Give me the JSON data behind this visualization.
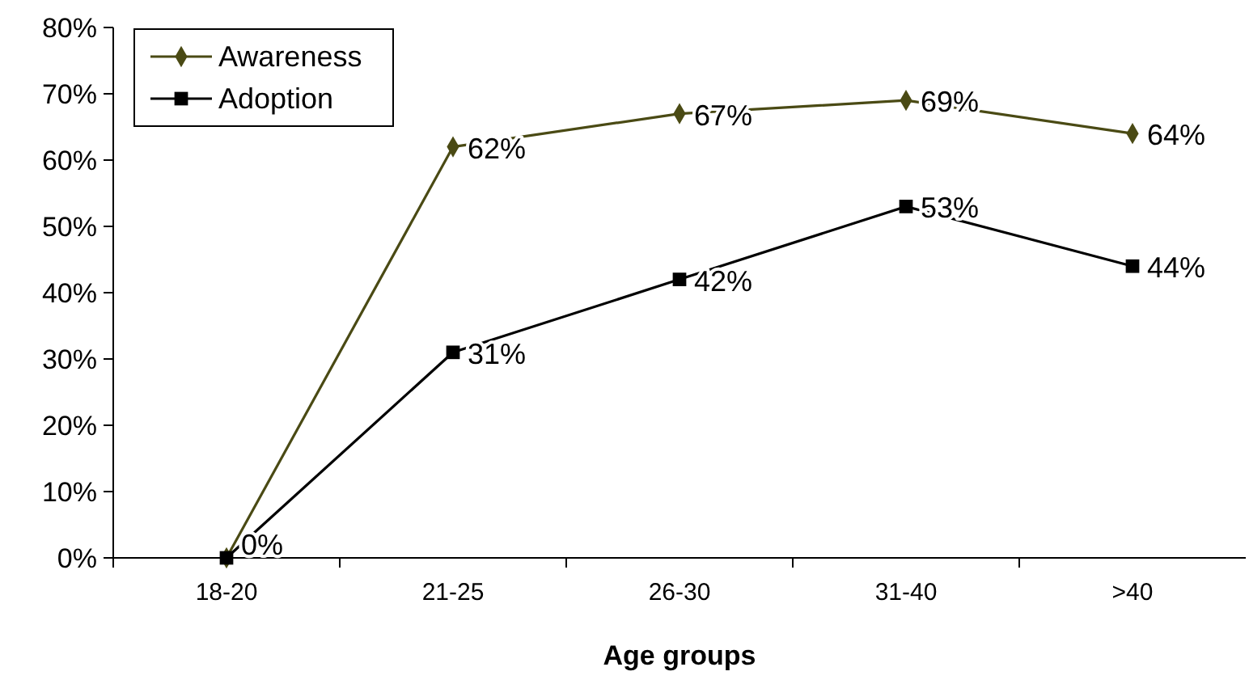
{
  "chart_data": {
    "type": "line",
    "xlabel": "Age groups",
    "categories": [
      "18-20",
      "21-25",
      "26-30",
      "31-40",
      ">40"
    ],
    "series": [
      {
        "name": "Awareness",
        "color": "#4a4a14",
        "marker": "diamond",
        "values": [
          0,
          62,
          67,
          69,
          64
        ],
        "value_labels": [
          null,
          "62%",
          "67%",
          "69%",
          "64%"
        ]
      },
      {
        "name": "Adoption",
        "color": "#000000",
        "marker": "square",
        "values": [
          0,
          31,
          42,
          53,
          44
        ],
        "value_labels": [
          "0%",
          "31%",
          "42%",
          "53%",
          "44%"
        ]
      }
    ],
    "ylim": [
      0,
      80
    ],
    "yticks": [
      {
        "value": 0,
        "label": "0%"
      },
      {
        "value": 10,
        "label": "10%"
      },
      {
        "value": 20,
        "label": "20%"
      },
      {
        "value": 30,
        "label": "30%"
      },
      {
        "value": 40,
        "label": "40%"
      },
      {
        "value": 50,
        "label": "50%"
      },
      {
        "value": 60,
        "label": "60%"
      },
      {
        "value": 70,
        "label": "70%"
      },
      {
        "value": 80,
        "label": "80%"
      }
    ],
    "grid": false,
    "legend": "top left"
  }
}
